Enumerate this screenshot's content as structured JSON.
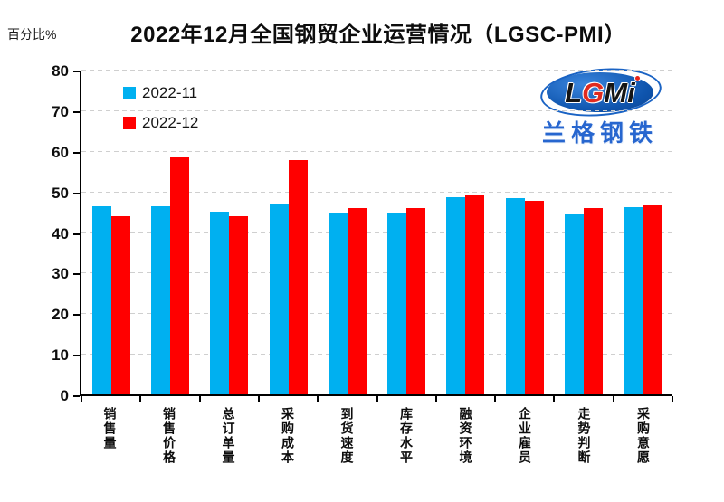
{
  "title": "2022年12月全国钢贸企业运营情况（LGSC-PMI）",
  "y_unit_label": "百分比%",
  "legend": [
    {
      "label": "2022-11",
      "color": "#00b0f0"
    },
    {
      "label": "2022-12",
      "color": "#ff0000"
    }
  ],
  "logo": {
    "letters": [
      {
        "ch": "L",
        "color": "#151515"
      },
      {
        "ch": "G",
        "color": "#e02b20"
      },
      {
        "ch": "M",
        "color": "#151515"
      },
      {
        "ch": "i",
        "color": "#151515"
      }
    ],
    "subtext": "兰格钢铁"
  },
  "chart_data": {
    "type": "bar",
    "title": "2022年12月全国钢贸企业运营情况（LGSC-PMI）",
    "ylabel": "百分比%",
    "ylim": [
      0,
      80
    ],
    "ytick_step": 10,
    "yticks": [
      0,
      10,
      20,
      30,
      40,
      50,
      60,
      70,
      80
    ],
    "grid": "dashed-horizontal",
    "legend_position": "top-left-inside",
    "categories": [
      "销售量",
      "销售价格",
      "总订单量",
      "采购成本",
      "到货速度",
      "库存水平",
      "融资环境",
      "企业雇员",
      "走势判断",
      "采购意愿"
    ],
    "series": [
      {
        "name": "2022-11",
        "color": "#00b0f0",
        "values": [
          46.3,
          46.3,
          45.0,
          46.8,
          44.8,
          44.9,
          48.5,
          48.3,
          44.3,
          46.2
        ]
      },
      {
        "name": "2022-12",
        "color": "#ff0000",
        "values": [
          44.0,
          58.4,
          43.9,
          57.8,
          45.9,
          46.0,
          49.0,
          47.8,
          46.0,
          46.6
        ]
      }
    ]
  }
}
